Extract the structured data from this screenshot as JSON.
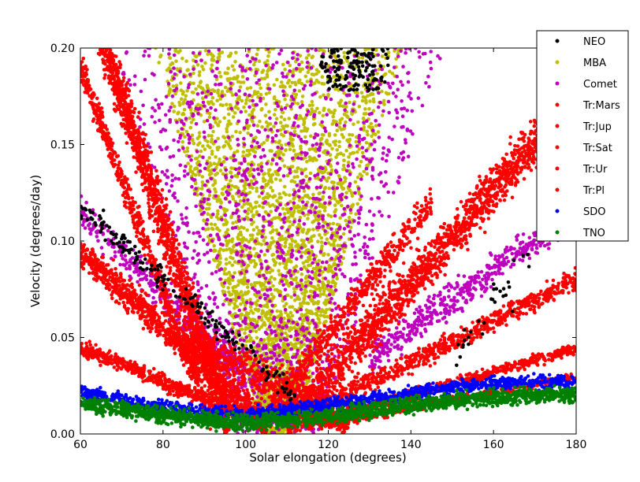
{
  "chart_data": {
    "type": "scatter",
    "title": "",
    "xlabel": "Solar elongation (degrees)",
    "ylabel": "Velocity (degrees/day)",
    "xlim": [
      60,
      180
    ],
    "ylim": [
      0.0,
      0.2
    ],
    "x_ticks": [
      60,
      80,
      100,
      120,
      140,
      160,
      180
    ],
    "x_tick_labels": [
      "60",
      "80",
      "100",
      "120",
      "140",
      "160",
      "180"
    ],
    "y_ticks": [
      0.0,
      0.05,
      0.1,
      0.15,
      0.2
    ],
    "y_tick_labels": [
      "0.00",
      "0.05",
      "0.10",
      "0.15",
      "0.20"
    ],
    "grid": false,
    "legend_position": "top-right",
    "series": [
      {
        "name": "NEO",
        "color": "#000000",
        "regions": [
          {
            "x": [
              118,
              135
            ],
            "y": [
              0.175,
              0.2
            ],
            "density": "medium"
          },
          {
            "x": [
              62,
              120
            ],
            "y": [
              0.02,
              0.12
            ],
            "density": "low"
          },
          {
            "x": [
              150,
              178
            ],
            "y": [
              0.04,
              0.12
            ],
            "density": "low"
          }
        ]
      },
      {
        "name": "MBA",
        "color": "#bfbf00",
        "regions": [
          {
            "x": [
              75,
              145
            ],
            "y": [
              0.0,
              0.2
            ],
            "shape": "funnel",
            "density": "high"
          }
        ]
      },
      {
        "name": "Comet",
        "color": "#bf00bf",
        "regions": [
          {
            "x": [
              60,
              180
            ],
            "y": [
              0.0,
              0.2
            ],
            "density": "medium"
          }
        ]
      },
      {
        "name": "Tr:Mars",
        "color": "#ff0000",
        "bands": "V-shaped bands with minimum near 100 degrees"
      },
      {
        "name": "Tr:Jup",
        "color": "#ff0000",
        "bands": "V-shaped bands with minimum near 100 degrees"
      },
      {
        "name": "Tr:Sat",
        "color": "#ff0000",
        "bands": "V-shaped bands with minimum near 100 degrees"
      },
      {
        "name": "Tr:Ur",
        "color": "#ff0000",
        "bands": "V-shaped bands with minimum near 100 degrees"
      },
      {
        "name": "Tr:Pl",
        "color": "#ff0000",
        "bands": "V-shaped bands with minimum near 100 degrees"
      },
      {
        "name": "SDO",
        "color": "#0000ff",
        "points": [
          [
            60,
            0.022
          ],
          [
            70,
            0.018
          ],
          [
            80,
            0.014
          ],
          [
            90,
            0.011
          ],
          [
            100,
            0.01
          ],
          [
            110,
            0.012
          ],
          [
            120,
            0.015
          ],
          [
            130,
            0.018
          ],
          [
            140,
            0.021
          ],
          [
            150,
            0.024
          ],
          [
            160,
            0.026
          ],
          [
            170,
            0.027
          ],
          [
            180,
            0.027
          ]
        ]
      },
      {
        "name": "TNO",
        "color": "#008000",
        "points": [
          [
            60,
            0.016
          ],
          [
            70,
            0.013
          ],
          [
            80,
            0.01
          ],
          [
            90,
            0.007
          ],
          [
            100,
            0.006
          ],
          [
            110,
            0.007
          ],
          [
            120,
            0.009
          ],
          [
            130,
            0.012
          ],
          [
            140,
            0.015
          ],
          [
            150,
            0.017
          ],
          [
            160,
            0.019
          ],
          [
            170,
            0.02
          ],
          [
            180,
            0.021
          ]
        ]
      }
    ]
  }
}
